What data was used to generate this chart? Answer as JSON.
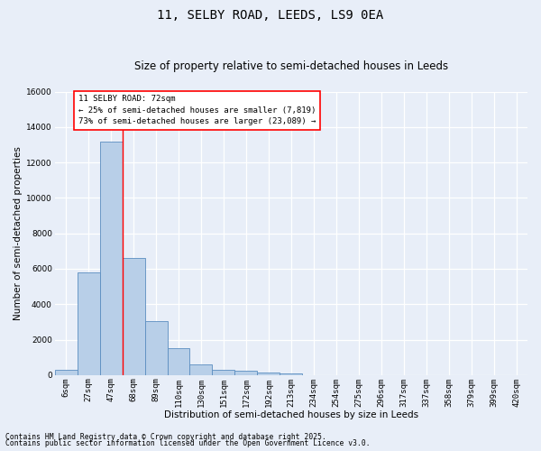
{
  "title1": "11, SELBY ROAD, LEEDS, LS9 0EA",
  "title2": "Size of property relative to semi-detached houses in Leeds",
  "xlabel": "Distribution of semi-detached houses by size in Leeds",
  "ylabel": "Number of semi-detached properties",
  "categories": [
    "6sqm",
    "27sqm",
    "47sqm",
    "68sqm",
    "89sqm",
    "110sqm",
    "130sqm",
    "151sqm",
    "172sqm",
    "192sqm",
    "213sqm",
    "234sqm",
    "254sqm",
    "275sqm",
    "296sqm",
    "317sqm",
    "337sqm",
    "358sqm",
    "379sqm",
    "399sqm",
    "420sqm"
  ],
  "values": [
    300,
    5800,
    13200,
    6600,
    3050,
    1520,
    600,
    300,
    260,
    160,
    110,
    0,
    0,
    0,
    0,
    0,
    0,
    0,
    0,
    0,
    0
  ],
  "bar_color": "#b8cfe8",
  "bar_edge_color": "#5b8dc0",
  "ylim": [
    0,
    16000
  ],
  "yticks": [
    0,
    2000,
    4000,
    6000,
    8000,
    10000,
    12000,
    14000,
    16000
  ],
  "annotation_line1": "11 SELBY ROAD: 72sqm",
  "annotation_line2": "← 25% of semi-detached houses are smaller (7,819)",
  "annotation_line3": "73% of semi-detached houses are larger (23,089) →",
  "vline_x": 3.0,
  "footer1": "Contains HM Land Registry data © Crown copyright and database right 2025.",
  "footer2": "Contains public sector information licensed under the Open Government Licence v3.0.",
  "bg_color": "#e8eef8",
  "grid_color": "#ffffff",
  "title1_fontsize": 10,
  "title2_fontsize": 8.5,
  "axis_label_fontsize": 7.5,
  "tick_fontsize": 6.5,
  "annot_fontsize": 6.5,
  "footer_fontsize": 5.8
}
